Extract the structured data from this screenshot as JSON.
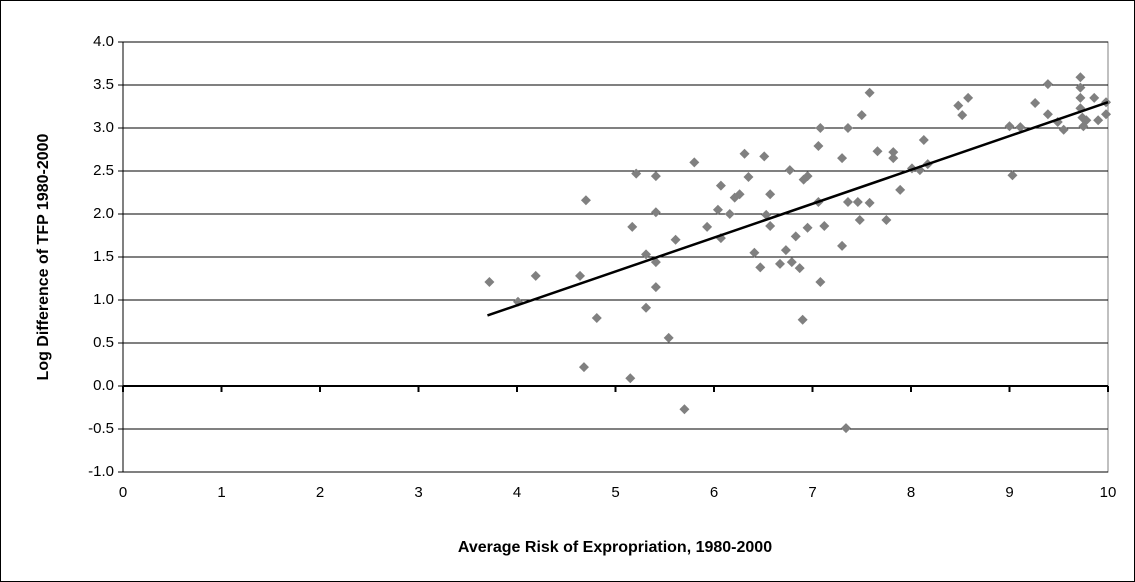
{
  "chart_data": {
    "type": "scatter",
    "x_label": "Average Risk of Expropriation, 1980-2000",
    "y_label": "Log Difference of TFP 1980-2000",
    "xlim": [
      0,
      10
    ],
    "ylim": [
      -1,
      4
    ],
    "xticks": [
      0,
      1,
      2,
      3,
      4,
      5,
      6,
      7,
      8,
      9,
      10
    ],
    "yticks": [
      {
        "value": 4,
        "label": "4.0"
      },
      3.5,
      {
        "value": 3,
        "label": "3.0"
      },
      2.5,
      {
        "value": 2,
        "label": "2.0"
      },
      1.5,
      {
        "value": 1,
        "label": "1.0"
      },
      0.5,
      {
        "value": 0,
        "label": "0.0"
      },
      -0.5,
      {
        "value": -1,
        "label": "-1.0"
      }
    ],
    "grid": true,
    "color": "#808080",
    "x": [
      3.72,
      4.01,
      4.19,
      4.64,
      4.7,
      4.68,
      4.81,
      5.15,
      5.17,
      5.21,
      5.31,
      5.31,
      5.41,
      5.41,
      5.41,
      5.41,
      5.54,
      5.61,
      5.7,
      5.8,
      5.93,
      6.04,
      6.07,
      6.07,
      6.16,
      6.21,
      6.26,
      6.31,
      6.35,
      6.41,
      6.47,
      6.51,
      6.53,
      6.57,
      6.57,
      6.67,
      6.73,
      6.77,
      6.79,
      6.83,
      6.87,
      6.9,
      6.91,
      6.95,
      6.95,
      7.06,
      7.08,
      7.06,
      7.08,
      7.12,
      7.3,
      7.3,
      7.34,
      7.36,
      7.36,
      7.46,
      7.48,
      7.5,
      7.58,
      7.58,
      7.66,
      7.75,
      7.82,
      7.82,
      7.89,
      8.01,
      8.09,
      8.13,
      8.17,
      8.48,
      8.52,
      8.58,
      9.0,
      9.03,
      9.11,
      9.26,
      9.39,
      9.39,
      9.49,
      9.55,
      9.72,
      9.72,
      9.72,
      9.72,
      9.74,
      9.75,
      9.78,
      9.86,
      9.9,
      9.98,
      9.98
    ],
    "y": [
      1.21,
      0.98,
      1.28,
      1.28,
      2.16,
      0.22,
      0.79,
      0.09,
      1.85,
      2.47,
      1.53,
      0.91,
      2.02,
      2.44,
      1.44,
      1.15,
      0.56,
      1.7,
      -0.27,
      2.6,
      1.85,
      2.05,
      2.33,
      1.72,
      2.0,
      2.19,
      2.23,
      2.7,
      2.43,
      1.55,
      1.38,
      2.67,
      1.99,
      2.23,
      1.86,
      1.42,
      1.58,
      2.51,
      1.44,
      1.74,
      1.37,
      0.77,
      2.4,
      2.44,
      1.84,
      2.79,
      3.0,
      2.14,
      1.21,
      1.86,
      2.65,
      1.63,
      -0.49,
      3.0,
      2.14,
      2.14,
      1.93,
      3.15,
      3.41,
      2.13,
      2.73,
      1.93,
      2.72,
      2.65,
      2.28,
      2.53,
      2.51,
      2.86,
      2.58,
      3.26,
      3.15,
      3.35,
      3.02,
      2.45,
      3.01,
      3.29,
      3.51,
      3.16,
      3.07,
      2.98,
      3.59,
      3.47,
      3.35,
      3.23,
      3.12,
      3.02,
      3.09,
      3.35,
      3.09,
      3.3,
      3.16
    ],
    "trend": {
      "x": [
        3.7,
        10
      ],
      "y": [
        0.82,
        3.3
      ],
      "color": "#000000"
    }
  }
}
